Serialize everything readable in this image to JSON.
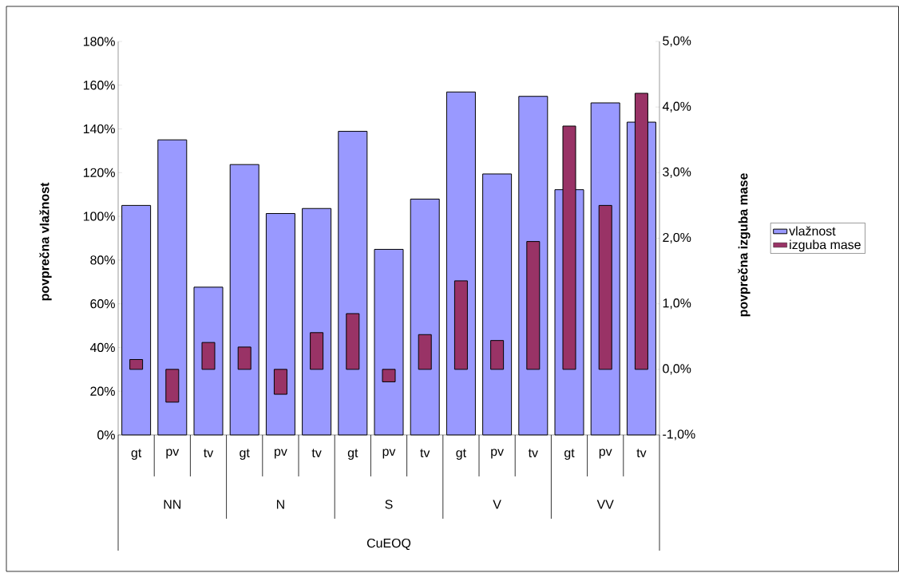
{
  "chart_data": {
    "type": "bar",
    "categories": [
      "gt",
      "pv",
      "tv",
      "gt",
      "pv",
      "tv",
      "gt",
      "pv",
      "tv",
      "gt",
      "pv",
      "tv",
      "gt",
      "pv",
      "tv"
    ],
    "annotations": [
      "NN",
      "N",
      "S",
      "V",
      "VV",
      "CuEOQ"
    ],
    "ylabel": "povprečna vlažnost",
    "y2label": "povprečna izguba mase",
    "series": [
      {
        "name": "vlažnost",
        "color": "#9999ff",
        "values": [
          105,
          135,
          67.6,
          123.7,
          101.3,
          103.6,
          138.9,
          84.9,
          107.9,
          156.9,
          119.4,
          154.9,
          112.2,
          151.9,
          143.1
        ]
      },
      {
        "name": "izguba mase",
        "color": "#993366",
        "axis": "y2",
        "values": [
          0.15,
          -0.5,
          0.41,
          0.34,
          -0.38,
          0.56,
          0.85,
          -0.19,
          0.53,
          1.35,
          0.44,
          1.95,
          3.71,
          2.5,
          4.21
        ]
      }
    ],
    "ylim": [
      0,
      180
    ],
    "yticks": [
      {
        "value": 0,
        "label": "0%"
      },
      {
        "value": 20,
        "label": "20%"
      },
      {
        "value": 40,
        "label": "40%"
      },
      {
        "value": 60,
        "label": "60%"
      },
      {
        "value": 80,
        "label": "80%"
      },
      {
        "value": 100,
        "label": "100%"
      },
      {
        "value": 120,
        "label": "120%"
      },
      {
        "value": 140,
        "label": "140%"
      },
      {
        "value": 160,
        "label": "160%"
      },
      {
        "value": 180,
        "label": "180%"
      }
    ],
    "y2lim": [
      -1,
      5
    ],
    "y2ticks": [
      {
        "value": -1,
        "label": "-1,0%"
      },
      {
        "value": 0,
        "label": "0,0%"
      },
      {
        "value": 1,
        "label": "1,0%"
      },
      {
        "value": 2,
        "label": "2,0%"
      },
      {
        "value": 3,
        "label": "3,0%"
      },
      {
        "value": 4,
        "label": "4,0%"
      },
      {
        "value": 5,
        "label": "5,0%"
      }
    ],
    "legend": "right"
  }
}
